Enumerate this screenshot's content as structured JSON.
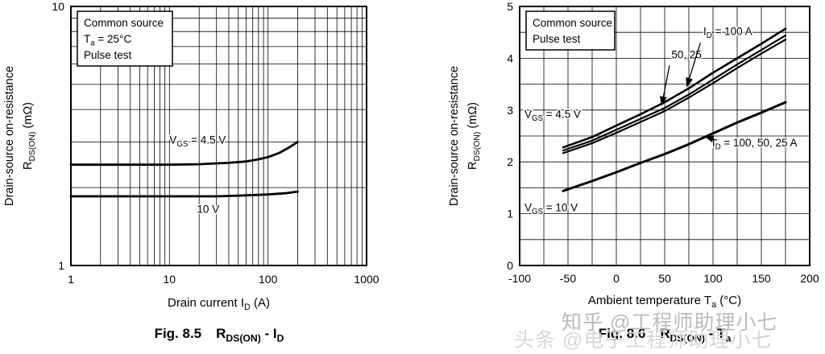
{
  "watermarks": {
    "zhihu": "知乎 @工程师助理小七",
    "toutiao": "头条 @电子工程师助理小七"
  },
  "colors": {
    "curve": "#000000",
    "grid": "#000000",
    "background": "#ffffff",
    "watermark": "#bdbdbd"
  },
  "chart_data": [
    {
      "type": "line",
      "caption_prefix": "Fig. 8.5",
      "caption_title": "R_{DS(ON)} - I_{D}",
      "xlabel": "Drain current  I_{D}  (A)",
      "ylabel_line1": "Drain-source on-resistance",
      "ylabel_line2": "R_{DS(ON)}  (mΩ)",
      "x_scale": "log",
      "y_scale": "log",
      "xlim": [
        1,
        1000
      ],
      "ylim": [
        1,
        10
      ],
      "x_ticks": [
        "1",
        "10",
        "100",
        "1000"
      ],
      "x_tick_values": [
        1,
        10,
        100,
        1000
      ],
      "y_ticks": [
        "1",
        "10"
      ],
      "y_tick_values": [
        1,
        10
      ],
      "conditions": [
        "Common source",
        "T_{a} = 25°C",
        "Pulse test"
      ],
      "series": [
        {
          "name": "VGS = 4.5 V",
          "width": 2.8,
          "points": [
            [
              1,
              2.45
            ],
            [
              2,
              2.45
            ],
            [
              5,
              2.45
            ],
            [
              10,
              2.45
            ],
            [
              20,
              2.46
            ],
            [
              40,
              2.49
            ],
            [
              60,
              2.52
            ],
            [
              80,
              2.57
            ],
            [
              100,
              2.62
            ],
            [
              130,
              2.72
            ],
            [
              160,
              2.84
            ],
            [
              200,
              3.0
            ]
          ]
        },
        {
          "name": "VGS = 10 V",
          "width": 2.8,
          "points": [
            [
              1,
              1.85
            ],
            [
              5,
              1.85
            ],
            [
              10,
              1.85
            ],
            [
              30,
              1.85
            ],
            [
              50,
              1.86
            ],
            [
              100,
              1.88
            ],
            [
              150,
              1.9
            ],
            [
              200,
              1.93
            ]
          ]
        }
      ],
      "labels": [
        {
          "text": "V_{GS} = 4.5 V",
          "x": 10,
          "y": 2.95,
          "anchor": "start"
        },
        {
          "text": "10 V",
          "x": 19,
          "y": 1.6,
          "anchor": "start"
        }
      ],
      "arrows": []
    },
    {
      "type": "line",
      "caption_prefix": "Fig. 8.6",
      "caption_title": "R_{DS(ON)} - T_{a}",
      "xlabel": "Ambient temperature  T_{a}  (°C)",
      "ylabel_line1": "Drain-source on-resistance",
      "ylabel_line2": "R_{DS(ON)}  (mΩ)",
      "x_scale": "linear",
      "y_scale": "linear",
      "xlim": [
        -100,
        200
      ],
      "ylim": [
        0,
        5
      ],
      "x_grid_step": 25,
      "y_grid_step": 0.5,
      "x_ticks": [
        "-100",
        "-50",
        "0",
        "50",
        "100",
        "150",
        "200"
      ],
      "x_tick_values": [
        -100,
        -50,
        0,
        50,
        100,
        150,
        200
      ],
      "y_ticks": [
        "0",
        "1",
        "2",
        "3",
        "4",
        "5"
      ],
      "y_tick_values": [
        0,
        1,
        2,
        3,
        4,
        5
      ],
      "conditions": [
        "Common source",
        "Pulse test"
      ],
      "series": [
        {
          "name": "VGS = 4.5 V, ID = 100 A",
          "width": 2.6,
          "points": [
            [
              -55,
              2.28
            ],
            [
              -25,
              2.48
            ],
            [
              0,
              2.7
            ],
            [
              25,
              2.92
            ],
            [
              50,
              3.15
            ],
            [
              75,
              3.42
            ],
            [
              100,
              3.72
            ],
            [
              125,
              4.0
            ],
            [
              150,
              4.28
            ],
            [
              175,
              4.57
            ]
          ]
        },
        {
          "name": "VGS = 4.5 V, ID = 50 A",
          "width": 2.2,
          "points": [
            [
              -55,
              2.22
            ],
            [
              -25,
              2.41
            ],
            [
              0,
              2.62
            ],
            [
              25,
              2.83
            ],
            [
              50,
              3.04
            ],
            [
              75,
              3.3
            ],
            [
              100,
              3.59
            ],
            [
              125,
              3.88
            ],
            [
              150,
              4.16
            ],
            [
              175,
              4.44
            ]
          ]
        },
        {
          "name": "VGS = 4.5 V, ID = 25 A",
          "width": 2.2,
          "points": [
            [
              -55,
              2.17
            ],
            [
              -25,
              2.36
            ],
            [
              0,
              2.56
            ],
            [
              25,
              2.77
            ],
            [
              50,
              2.98
            ],
            [
              75,
              3.24
            ],
            [
              100,
              3.52
            ],
            [
              125,
              3.81
            ],
            [
              150,
              4.09
            ],
            [
              175,
              4.36
            ]
          ]
        },
        {
          "name": "VGS = 10 V, ID = 100, 50, 25 A",
          "width": 3.0,
          "points": [
            [
              -55,
              1.44
            ],
            [
              -25,
              1.63
            ],
            [
              0,
              1.8
            ],
            [
              25,
              1.98
            ],
            [
              50,
              2.15
            ],
            [
              75,
              2.34
            ],
            [
              100,
              2.55
            ],
            [
              125,
              2.76
            ],
            [
              150,
              2.95
            ],
            [
              175,
              3.15
            ]
          ]
        }
      ],
      "labels": [
        {
          "text": "I_{D} = 100 A",
          "x": 90,
          "y": 4.45,
          "anchor": "start"
        },
        {
          "text": "50, 25",
          "x": 57,
          "y": 4.0,
          "anchor": "start"
        },
        {
          "text": "V_{GS} = 4.5 V",
          "x": -95,
          "y": 2.85,
          "anchor": "start"
        },
        {
          "text": "I_{D} = 100, 50, 25 A",
          "x": 99,
          "y": 2.3,
          "anchor": "start"
        },
        {
          "text": "V_{GS} = 10 V",
          "x": -95,
          "y": 1.05,
          "anchor": "start"
        }
      ],
      "arrows": [
        {
          "from": [
            87,
            4.3
          ],
          "to": [
            73,
            3.46
          ]
        },
        {
          "from": [
            55,
            3.86
          ],
          "to": [
            47,
            3.1
          ]
        },
        {
          "from": [
            104,
            2.42
          ],
          "to": [
            92,
            2.49
          ]
        }
      ]
    }
  ]
}
